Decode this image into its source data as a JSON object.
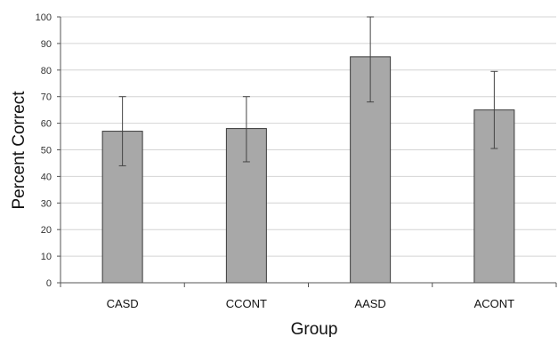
{
  "chart_data": {
    "type": "bar",
    "title": "",
    "xlabel": "Group",
    "ylabel": "Percent Correct",
    "ylim": [
      0,
      100
    ],
    "yticks": [
      0,
      10,
      20,
      30,
      40,
      50,
      60,
      70,
      80,
      90,
      100
    ],
    "categories": [
      "CASD",
      "CCONT",
      "AASD",
      "ACONT"
    ],
    "values": [
      57,
      58,
      85,
      65
    ],
    "error_bars": [
      {
        "low": 44,
        "high": 70
      },
      {
        "low": 45.5,
        "high": 70
      },
      {
        "low": 68,
        "high": 100
      },
      {
        "low": 50.5,
        "high": 79.5
      }
    ],
    "grid": true,
    "legend": "none",
    "colors": {
      "bar_fill": "#a8a8a8",
      "bar_stroke": "#3a3a3a",
      "grid": "#d4d4d4",
      "axis": "#555555",
      "error_bar": "#444444"
    }
  }
}
